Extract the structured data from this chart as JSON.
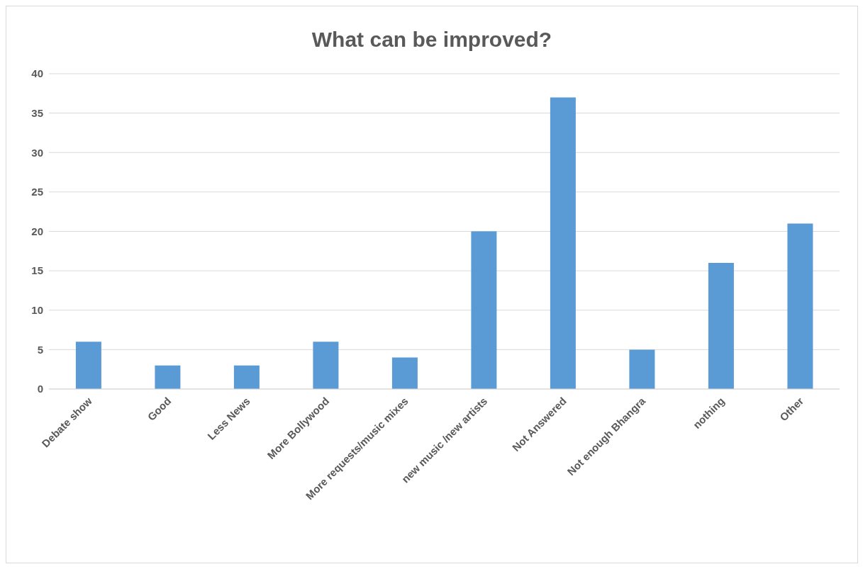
{
  "chart_data": {
    "type": "bar",
    "title": "What can be improved?",
    "categories": [
      "Debate show",
      "Good",
      "Less News",
      "More Bollywood",
      "More requests/music mixes",
      "new music /new artists",
      "Not Answered",
      "Not enough Bhangra",
      "nothing",
      "Other"
    ],
    "values": [
      6,
      3,
      3,
      6,
      4,
      20,
      37,
      5,
      16,
      21
    ],
    "color": "#5b9bd5",
    "ylim": [
      0,
      40
    ],
    "yticks": [
      0,
      5,
      10,
      15,
      20,
      25,
      30,
      35,
      40
    ],
    "grid": "y"
  }
}
